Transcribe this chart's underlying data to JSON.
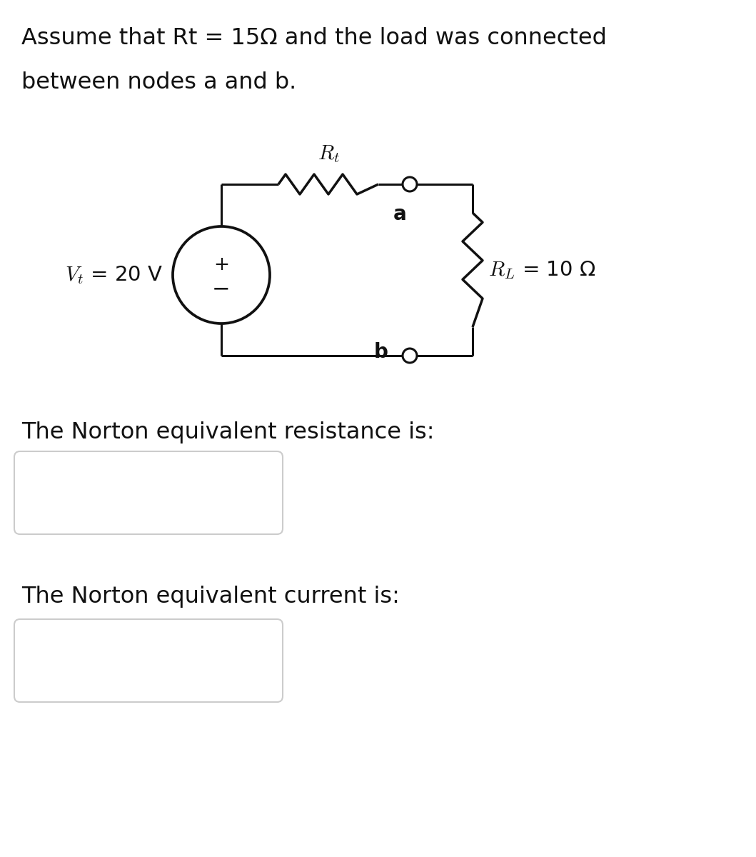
{
  "title_line1": "Assume that Rt = 15Ω and the load was connected",
  "title_line2": "between nodes a and b.",
  "vt_label": "$V_t$ = 20 V",
  "rt_label": "$R_t$",
  "rl_label": "$R_L$ = 10 Ω",
  "node_a": "a",
  "node_b": "b",
  "norton_resistance_label": "The Norton equivalent resistance is:",
  "norton_current_label": "The Norton equivalent current is:",
  "bg_color": "#ffffff",
  "text_color": "#111111",
  "line_color": "#111111",
  "box_edge_color": "#cccccc",
  "font_size_title": 23,
  "font_size_circuit": 19,
  "font_size_node": 20,
  "font_size_labels": 21
}
